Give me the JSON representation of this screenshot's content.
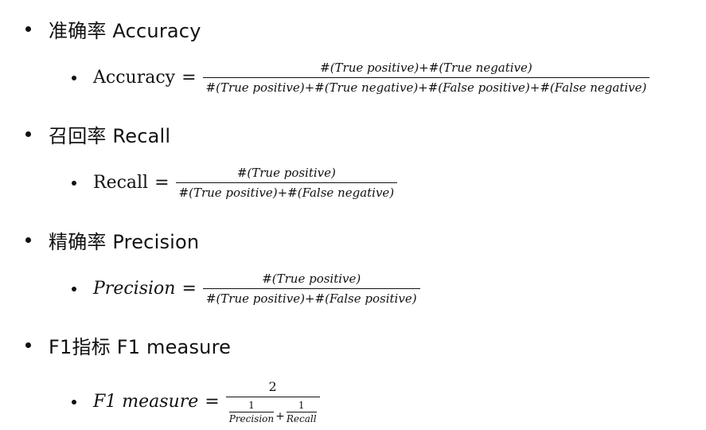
{
  "sections": [
    {
      "heading": "准确率 Accuracy",
      "lhs": "Accuracy",
      "eq": "=",
      "numerator": "#(True positive)+#(True negative)",
      "denominator": "#(True positive)+#(True negative)+#(False positive)+#(False negative)"
    },
    {
      "heading": "召回率 Recall",
      "lhs": "Recall",
      "eq": "=",
      "numerator": "#(True positive)",
      "denominator": "#(True positive)+#(False negative)"
    },
    {
      "heading": "精确率 Precision",
      "lhs": "Precision",
      "eq": "=",
      "numerator": "#(True positive)",
      "denominator": "#(True positive)+#(False positive)"
    },
    {
      "heading": "F1指标  F1 measure",
      "lhs": "F1 measure",
      "eq": "=",
      "numerator": "2",
      "den_term1_num": "1",
      "den_term1_den": "Precision",
      "den_plus": "+",
      "den_term2_num": "1",
      "den_term2_den": "Recall"
    }
  ]
}
